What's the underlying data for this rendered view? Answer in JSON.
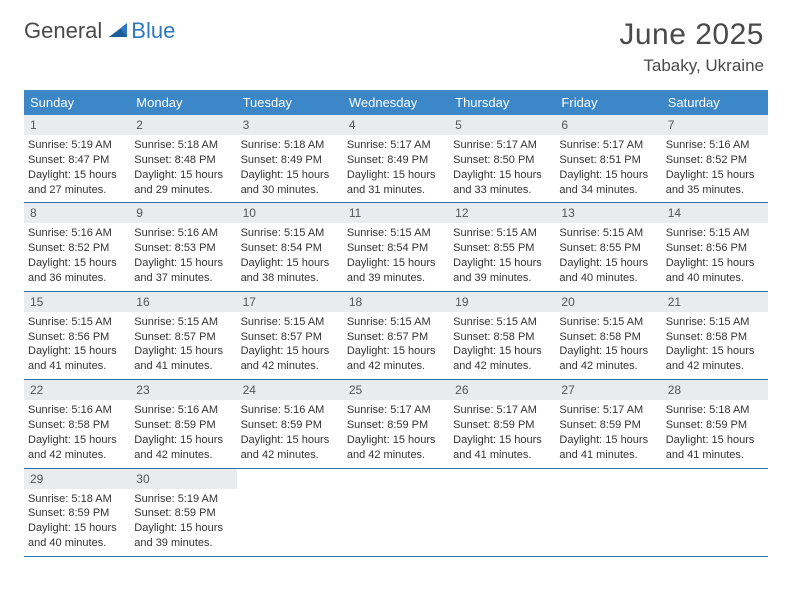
{
  "brand": {
    "part1": "General",
    "part2": "Blue"
  },
  "title": "June 2025",
  "location": "Tabaky, Ukraine",
  "colors": {
    "header_bg": "#3b87c8",
    "daynum_bg": "#e9ecef",
    "rule": "#2f6fa5",
    "brand_grey": "#4a4a4a",
    "brand_blue": "#2f78bd"
  },
  "dow": [
    "Sunday",
    "Monday",
    "Tuesday",
    "Wednesday",
    "Thursday",
    "Friday",
    "Saturday"
  ],
  "days": [
    {
      "n": 1,
      "sr": "5:19 AM",
      "ss": "8:47 PM",
      "dh": 15,
      "dm": 27
    },
    {
      "n": 2,
      "sr": "5:18 AM",
      "ss": "8:48 PM",
      "dh": 15,
      "dm": 29
    },
    {
      "n": 3,
      "sr": "5:18 AM",
      "ss": "8:49 PM",
      "dh": 15,
      "dm": 30
    },
    {
      "n": 4,
      "sr": "5:17 AM",
      "ss": "8:49 PM",
      "dh": 15,
      "dm": 31
    },
    {
      "n": 5,
      "sr": "5:17 AM",
      "ss": "8:50 PM",
      "dh": 15,
      "dm": 33
    },
    {
      "n": 6,
      "sr": "5:17 AM",
      "ss": "8:51 PM",
      "dh": 15,
      "dm": 34
    },
    {
      "n": 7,
      "sr": "5:16 AM",
      "ss": "8:52 PM",
      "dh": 15,
      "dm": 35
    },
    {
      "n": 8,
      "sr": "5:16 AM",
      "ss": "8:52 PM",
      "dh": 15,
      "dm": 36
    },
    {
      "n": 9,
      "sr": "5:16 AM",
      "ss": "8:53 PM",
      "dh": 15,
      "dm": 37
    },
    {
      "n": 10,
      "sr": "5:15 AM",
      "ss": "8:54 PM",
      "dh": 15,
      "dm": 38
    },
    {
      "n": 11,
      "sr": "5:15 AM",
      "ss": "8:54 PM",
      "dh": 15,
      "dm": 39
    },
    {
      "n": 12,
      "sr": "5:15 AM",
      "ss": "8:55 PM",
      "dh": 15,
      "dm": 39
    },
    {
      "n": 13,
      "sr": "5:15 AM",
      "ss": "8:55 PM",
      "dh": 15,
      "dm": 40
    },
    {
      "n": 14,
      "sr": "5:15 AM",
      "ss": "8:56 PM",
      "dh": 15,
      "dm": 40
    },
    {
      "n": 15,
      "sr": "5:15 AM",
      "ss": "8:56 PM",
      "dh": 15,
      "dm": 41
    },
    {
      "n": 16,
      "sr": "5:15 AM",
      "ss": "8:57 PM",
      "dh": 15,
      "dm": 41
    },
    {
      "n": 17,
      "sr": "5:15 AM",
      "ss": "8:57 PM",
      "dh": 15,
      "dm": 42
    },
    {
      "n": 18,
      "sr": "5:15 AM",
      "ss": "8:57 PM",
      "dh": 15,
      "dm": 42
    },
    {
      "n": 19,
      "sr": "5:15 AM",
      "ss": "8:58 PM",
      "dh": 15,
      "dm": 42
    },
    {
      "n": 20,
      "sr": "5:15 AM",
      "ss": "8:58 PM",
      "dh": 15,
      "dm": 42
    },
    {
      "n": 21,
      "sr": "5:15 AM",
      "ss": "8:58 PM",
      "dh": 15,
      "dm": 42
    },
    {
      "n": 22,
      "sr": "5:16 AM",
      "ss": "8:58 PM",
      "dh": 15,
      "dm": 42
    },
    {
      "n": 23,
      "sr": "5:16 AM",
      "ss": "8:59 PM",
      "dh": 15,
      "dm": 42
    },
    {
      "n": 24,
      "sr": "5:16 AM",
      "ss": "8:59 PM",
      "dh": 15,
      "dm": 42
    },
    {
      "n": 25,
      "sr": "5:17 AM",
      "ss": "8:59 PM",
      "dh": 15,
      "dm": 42
    },
    {
      "n": 26,
      "sr": "5:17 AM",
      "ss": "8:59 PM",
      "dh": 15,
      "dm": 41
    },
    {
      "n": 27,
      "sr": "5:17 AM",
      "ss": "8:59 PM",
      "dh": 15,
      "dm": 41
    },
    {
      "n": 28,
      "sr": "5:18 AM",
      "ss": "8:59 PM",
      "dh": 15,
      "dm": 41
    },
    {
      "n": 29,
      "sr": "5:18 AM",
      "ss": "8:59 PM",
      "dh": 15,
      "dm": 40
    },
    {
      "n": 30,
      "sr": "5:19 AM",
      "ss": "8:59 PM",
      "dh": 15,
      "dm": 39
    }
  ],
  "labels": {
    "sunrise": "Sunrise:",
    "sunset": "Sunset:",
    "daylight_prefix": "Daylight:",
    "hours_word": "hours",
    "minutes_word": "minutes.",
    "and_word": "and"
  },
  "layout": {
    "first_weekday_offset": 0,
    "total_days": 30
  }
}
